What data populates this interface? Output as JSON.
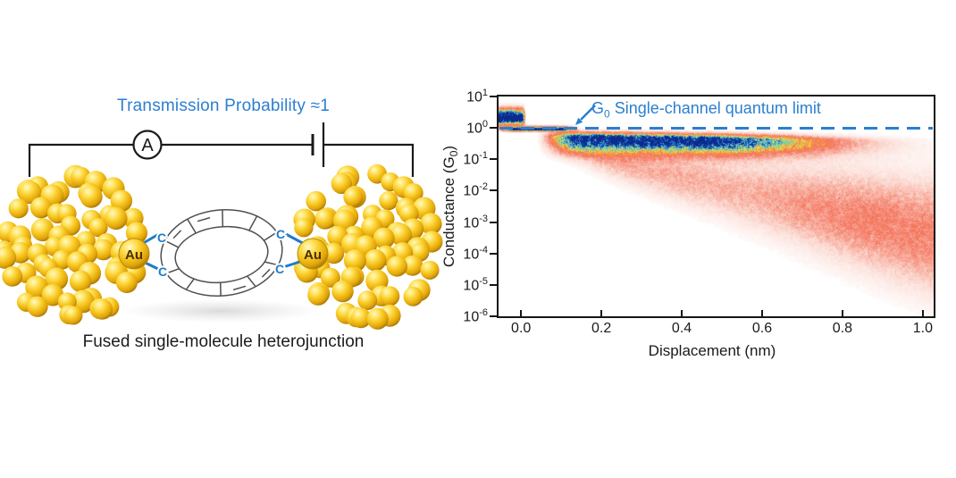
{
  "left_panel": {
    "title": "Transmission Probability ≈1",
    "caption": "Fused single-molecule heterojunction",
    "ammeter_label": "A",
    "electrode_label": "Au",
    "carbon_label": "C",
    "colors": {
      "accent_blue": "#2b7fd0",
      "bond_blue": "#1f7bc7",
      "wire": "#1a1a1a",
      "gold_mid": "#f2b819",
      "gold_dark": "#c78f06"
    }
  },
  "chart_data": {
    "type": "heatmap",
    "title": "",
    "xlabel": "Displacement (nm)",
    "ylabel": {
      "prefix": "Conductance (G",
      "sub": "0",
      "suffix": ")"
    },
    "xlim_nm": [
      -0.056,
      1.027
    ],
    "ylim_log10_g0": [
      -6,
      1
    ],
    "x_tick_values": [
      0.0,
      0.2,
      0.4,
      0.6,
      0.8,
      1.0
    ],
    "x_ticks": [
      "0.0",
      "0.2",
      "0.4",
      "0.6",
      "0.8",
      "1.0"
    ],
    "y_tick_base": "10",
    "y_tick_exponents": [
      "1",
      "0",
      "-1",
      "-2",
      "-3",
      "-4",
      "-5",
      "-6"
    ],
    "grid": false,
    "legend": null,
    "annotation": {
      "prefix": "G",
      "sub": "0",
      "rest": " Single-channel quantum limit"
    },
    "reference_line": {
      "value_log10_g0": 0,
      "style": "dashed",
      "color": "#2b7fd0"
    },
    "colors": {
      "axis": "#161616",
      "annotation": "#2b7fd0"
    },
    "colormap_stops": [
      [
        0.0,
        "#ffffff"
      ],
      [
        0.1,
        "#fcdfd8"
      ],
      [
        0.22,
        "#f7a08e"
      ],
      [
        0.34,
        "#f4705c"
      ],
      [
        0.46,
        "#f59a3c"
      ],
      [
        0.58,
        "#f0d858"
      ],
      [
        0.68,
        "#8fd47c"
      ],
      [
        0.77,
        "#52c8dc"
      ],
      [
        0.87,
        "#2d7ee0"
      ],
      [
        1.0,
        "#0a2a8c"
      ]
    ],
    "density_regions": [
      {
        "name": "gold-contact-plateau",
        "kind": "band",
        "x_range": [
          -0.07,
          0.012
        ],
        "edge_softness": 0.012,
        "log_g_center": 0.33,
        "sigma_above": 0.24,
        "sigma_below": 0.18,
        "amplitude": 1.6
      },
      {
        "name": "single-channel-plateau",
        "kind": "band",
        "x_range": [
          -0.07,
          0.15
        ],
        "edge_softness": 0.06,
        "log_g_center": -0.03,
        "sigma_above": 0.08,
        "sigma_below": 0.06,
        "amplitude": 1.3
      },
      {
        "name": "molecular-junction-band",
        "kind": "plume",
        "x_rise": [
          0.03,
          0.15
        ],
        "x_hold_until": 0.43,
        "x_decay_sigma": 0.3,
        "log_g_center_start": -0.28,
        "log_g_center_slope": -0.18,
        "sigma_above": 0.16,
        "sigma_below": 0.42,
        "amplitude": 1.25
      },
      {
        "name": "tunneling-decay-cloud",
        "kind": "fan",
        "x_start": 0.06,
        "x_rise_width": 0.2,
        "log_g_center_start": -0.55,
        "log_g_center_slope": -3.0,
        "sigma_start": 0.3,
        "sigma_growth": 1.35,
        "amplitude_base": 0.2,
        "amplitude_gain": 0.12,
        "upper_clip_log_g": -0.05
      }
    ]
  }
}
